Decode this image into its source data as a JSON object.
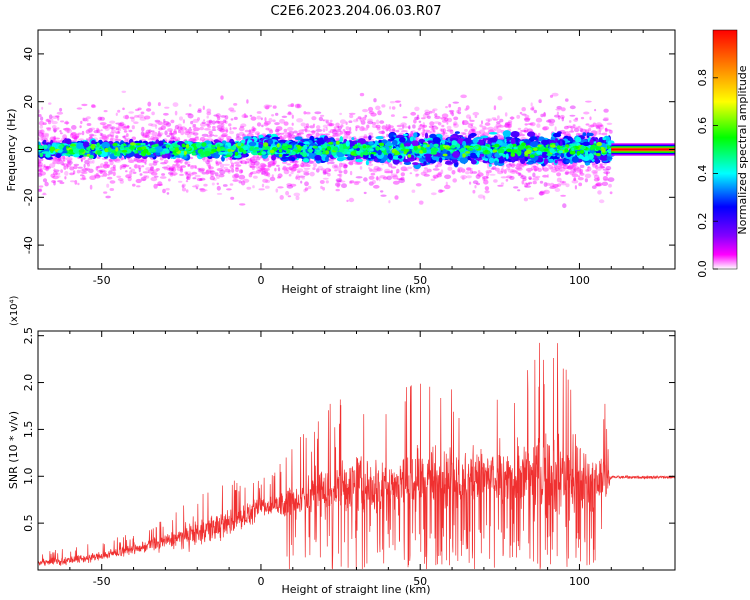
{
  "title": "C2E6.2023.204.06.03.R07",
  "colorbar": {
    "label": "Normalized spectral amplitude",
    "ticks": [
      "0.0",
      "0.2",
      "0.4",
      "0.6",
      "0.8"
    ],
    "range": [
      0,
      1
    ],
    "colormap": [
      "#ffffff",
      "#ff00ff",
      "#8000ff",
      "#0000ff",
      "#00ffff",
      "#00ff00",
      "#ffff00",
      "#ff8000",
      "#ff0000"
    ]
  },
  "chart_data": [
    {
      "type": "heatmap",
      "title": "",
      "xlabel": "Height of straight line (km)",
      "ylabel": "Frequency (Hz)",
      "xlim": [
        -70,
        130
      ],
      "ylim": [
        -50,
        50
      ],
      "xticks": [
        -50,
        0,
        50,
        100
      ],
      "yticks": [
        -40,
        -20,
        0,
        20,
        40
      ],
      "xtick_labels": [
        "-50",
        "0",
        "50",
        "100"
      ],
      "ytick_labels": [
        "-40",
        "-20",
        "0",
        "20",
        "40"
      ],
      "grid": false,
      "description_of_signal": {
        "band_center_hz": 0,
        "band_halfwidth_hz": [
          3,
          12
        ],
        "noise_spread_hz": 25,
        "steady_tail_start_km": 110,
        "steady_tail_amplitude": 1.0
      }
    },
    {
      "type": "line",
      "title": "",
      "xlabel": "Height of straight line (km)",
      "ylabel": "SNR (10 * v/v)",
      "y_multiplier": "(x10⁴)",
      "xlim": [
        -70,
        130
      ],
      "ylim": [
        0,
        2.55
      ],
      "xticks": [
        -50,
        0,
        50,
        100
      ],
      "yticks": [
        0.5,
        1.0,
        1.5,
        2.0,
        2.5
      ],
      "xtick_labels": [
        "-50",
        "0",
        "50",
        "100"
      ],
      "ytick_labels": [
        "0.5",
        "1.0",
        "1.5",
        "2.0",
        "2.5"
      ],
      "grid": false,
      "series": [
        {
          "color": "#f03030",
          "envelope": {
            "x": [
              -70,
              -60,
              -50,
              -40,
              -30,
              -20,
              -10,
              0,
              5,
              8,
              15,
              20,
              30,
              40,
              50,
              60,
              70,
              80,
              90,
              100,
              108,
              110,
              130
            ],
            "mean": [
              0.08,
              0.1,
              0.15,
              0.22,
              0.3,
              0.4,
              0.5,
              0.65,
              0.7,
              0.72,
              0.78,
              0.85,
              0.9,
              0.92,
              0.95,
              0.98,
              1.0,
              1.0,
              1.0,
              0.98,
              0.95,
              0.99,
              0.99
            ],
            "peak": [
              0.2,
              0.25,
              0.3,
              0.4,
              0.55,
              0.9,
              0.95,
              1.0,
              1.05,
              1.3,
              1.5,
              1.8,
              2.05,
              1.95,
              2.0,
              2.0,
              2.0,
              2.1,
              2.55,
              2.25,
              1.8,
              1.01,
              1.01
            ]
          }
        }
      ]
    }
  ]
}
